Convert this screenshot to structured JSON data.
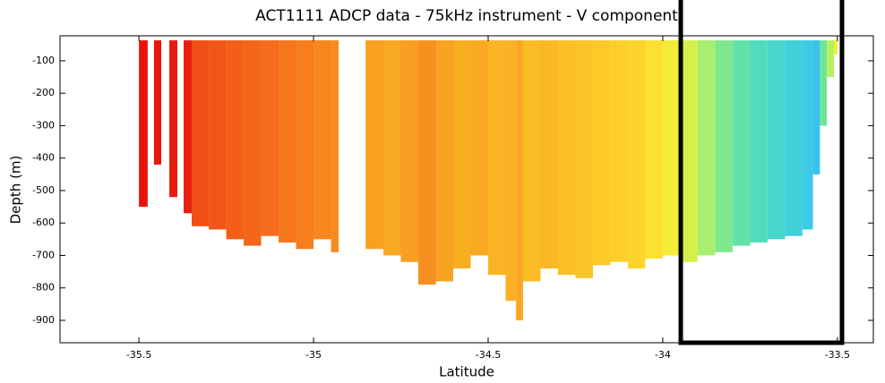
{
  "chart_data": {
    "type": "profile",
    "title": "ACT1111 ADCP data - 75kHz instrument - V component",
    "xlabel": "Latitude",
    "ylabel": "Depth (m)",
    "xlim": [
      -35.726,
      -33.397
    ],
    "ylim": [
      -969,
      -23
    ],
    "xticks": [
      -35.5,
      -35,
      -34.5,
      -34,
      -33.5
    ],
    "yticks": [
      -900,
      -800,
      -700,
      -600,
      -500,
      -400,
      -300,
      -200,
      -100
    ],
    "top": -37,
    "bins": [
      -35.5,
      -35.475,
      -35.457,
      -35.436,
      -35.413,
      -35.39,
      -35.372,
      -35.349,
      -35.3,
      -35.25,
      -35.2,
      -35.15,
      -35.1,
      -35.05,
      -35.0,
      -34.95,
      -34.928,
      -34.851,
      -34.8,
      -34.75,
      -34.7,
      -34.65,
      -34.6,
      -34.55,
      -34.5,
      -34.45,
      -34.42,
      -34.4,
      -34.35,
      -34.3,
      -34.25,
      -34.2,
      -34.15,
      -34.1,
      -34.05,
      -34.0,
      -33.95,
      -33.9,
      -33.85,
      -33.8,
      -33.75,
      -33.7,
      -33.65,
      -33.6,
      -33.57,
      -33.55,
      -33.53,
      -33.51,
      -33.5
    ],
    "bottom": [
      -550,
      null,
      -420,
      null,
      -520,
      null,
      -570,
      -610,
      -620,
      -650,
      -670,
      -640,
      -660,
      -680,
      -650,
      -690,
      null,
      -680,
      -700,
      -720,
      -790,
      -780,
      -740,
      -700,
      -760,
      -840,
      -900,
      -780,
      -740,
      -760,
      -770,
      -730,
      -720,
      -740,
      -710,
      -700,
      -720,
      -700,
      -690,
      -670,
      -660,
      -650,
      -640,
      -620,
      -450,
      -300,
      -150,
      -80
    ],
    "colors": [
      "#e8140c",
      null,
      "#e8180c",
      null,
      "#e81c0e",
      null,
      "#ea200e",
      "#f04e14",
      "#f25616",
      "#f35e18",
      "#f4661a",
      "#f56c1a",
      "#f6761c",
      "#f67e1c",
      "#f7861e",
      "#f78c1e",
      null,
      "#f8a020",
      "#f8a822",
      "#f89e20",
      "#f79020",
      "#f8a422",
      "#f9ae22",
      "#faaa22",
      "#fab424",
      "#fab224",
      "#f9a822",
      "#fabc24",
      "#fab824",
      "#fbc026",
      "#fbc426",
      "#fcca28",
      "#fcce2a",
      "#fcd42c",
      "#fde030",
      "#f4ec38",
      "#d6f04a",
      "#a8ee70",
      "#80e88c",
      "#62e2a8",
      "#52dcbe",
      "#48d6cc",
      "#40d0da",
      "#3ccae6",
      "#38c2ec",
      "#6ee498",
      "#b4f060",
      "#f0f030"
    ]
  }
}
